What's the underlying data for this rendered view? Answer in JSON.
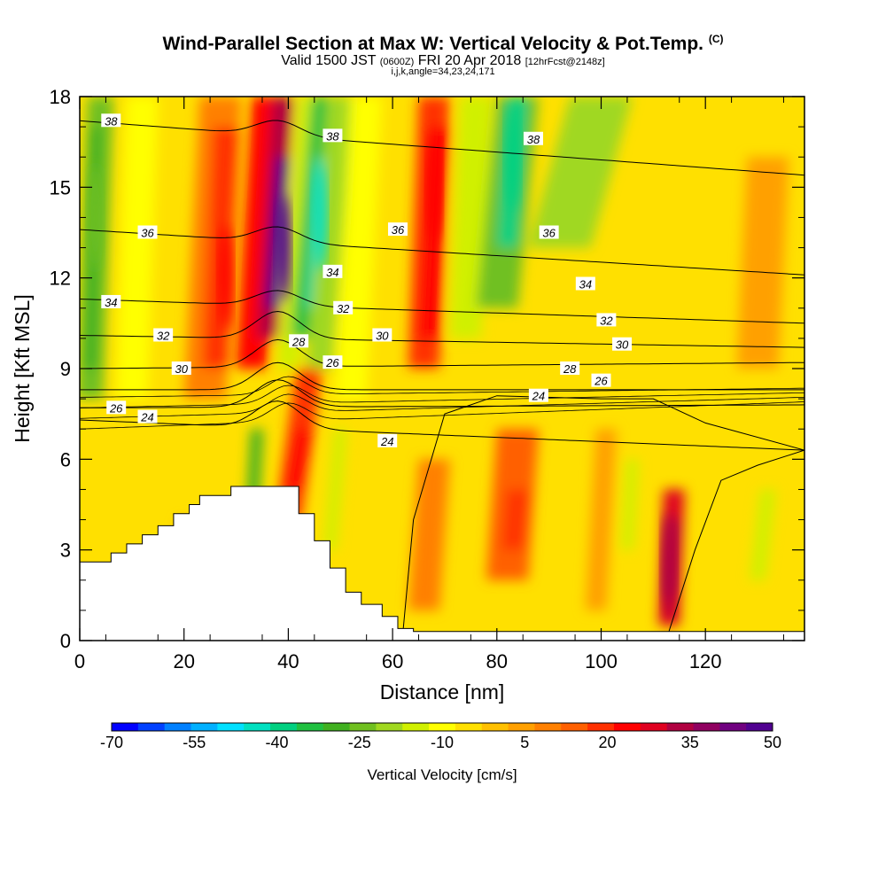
{
  "title": {
    "main": "Wind-Parallel Section at Max W: Vertical Velocity & Pot.Temp.",
    "main_mark": "(C)",
    "valid_prefix": "Valid 1500 JST",
    "valid_utc": "(0600Z)",
    "valid_date": "FRI 20 Apr 2018",
    "forecast": "[12hrFcst@2148z]",
    "indices": "i,j,k,angle=34,23,24,171"
  },
  "chart_data": {
    "type": "heatmap",
    "xlabel": "Distance [nm]",
    "ylabel": "Height [Kft MSL]",
    "xlim": [
      0,
      139
    ],
    "ylim": [
      0,
      18
    ],
    "x_ticks": [
      0,
      20,
      40,
      60,
      80,
      100,
      120
    ],
    "y_ticks": [
      0,
      3,
      6,
      9,
      12,
      15,
      18
    ],
    "colorbar": {
      "title": "Vertical Velocity [cm/s]",
      "levels": [
        -70,
        -65,
        -60,
        -55,
        -50,
        -45,
        -40,
        -35,
        -30,
        -25,
        -20,
        -15,
        -10,
        -5,
        0,
        5,
        10,
        15,
        20,
        25,
        30,
        35,
        40,
        45,
        50
      ],
      "tick_labels": [
        "-70",
        "-55",
        "-40",
        "-25",
        "-10",
        "5",
        "20",
        "35",
        "50"
      ],
      "tick_values": [
        -70,
        -55,
        -40,
        -25,
        -10,
        5,
        20,
        35,
        50
      ],
      "colors": [
        "#0000ff",
        "#0040ff",
        "#0080ff",
        "#00b0ff",
        "#00e0ff",
        "#00e0c0",
        "#00d080",
        "#20c040",
        "#40b020",
        "#70c020",
        "#a0d820",
        "#d0f000",
        "#ffff00",
        "#ffe000",
        "#ffc000",
        "#ffa000",
        "#ff8000",
        "#ff6000",
        "#ff3000",
        "#ff0000",
        "#e00020",
        "#b00040",
        "#900060",
        "#700080",
        "#500090"
      ]
    },
    "velocity_cores": [
      {
        "x": 39,
        "y": 13,
        "w_cms": 50
      },
      {
        "x": 28,
        "y": 12,
        "w_cms": 25
      },
      {
        "x": 46,
        "y": 14,
        "w_cms": -45
      },
      {
        "x": 83,
        "y": 16,
        "w_cms": -40
      },
      {
        "x": 68,
        "y": 15,
        "w_cms": 25
      },
      {
        "x": 113,
        "y": 2.5,
        "w_cms": 35
      },
      {
        "x": 3,
        "y": 14,
        "w_cms": -25
      }
    ],
    "terrain_profile": {
      "x": [
        0,
        3,
        6,
        9,
        12,
        15,
        18,
        21,
        23,
        26,
        29,
        32,
        35,
        38,
        39,
        42,
        45,
        48,
        51,
        54,
        58,
        61,
        64,
        139
      ],
      "y": [
        2.6,
        2.6,
        2.9,
        3.2,
        3.5,
        3.8,
        4.2,
        4.5,
        4.8,
        4.8,
        5.1,
        5.1,
        5.1,
        5.1,
        5.1,
        4.2,
        3.3,
        2.4,
        1.6,
        1.2,
        0.8,
        0.4,
        0.3,
        0.3
      ]
    },
    "theta_contours": [
      {
        "label": "38",
        "y_left": 17.2,
        "y_right": 15.4
      },
      {
        "label": "36",
        "y_left": 13.6,
        "y_right": 12.1
      },
      {
        "label": "34",
        "y_left": 11.3,
        "y_right": 10.5
      },
      {
        "label": "32",
        "y_left": 10.1,
        "y_right": 9.7
      },
      {
        "label": "30",
        "y_left": 9.0,
        "y_right": 9.2
      },
      {
        "label": "28",
        "y_left": 8.3,
        "y_right": 8.3
      },
      {
        "label": "26",
        "y_left": 7.7,
        "y_right": 7.8
      },
      {
        "label": "24",
        "y_left": 7.3,
        "y_right": 6.3
      }
    ],
    "contour_labels": [
      {
        "text": "38",
        "x": 6,
        "y": 17.2
      },
      {
        "text": "38",
        "x": 48.5,
        "y": 16.7
      },
      {
        "text": "38",
        "x": 87,
        "y": 16.6
      },
      {
        "text": "36",
        "x": 13,
        "y": 13.5
      },
      {
        "text": "36",
        "x": 61,
        "y": 13.6
      },
      {
        "text": "36",
        "x": 90,
        "y": 13.5
      },
      {
        "text": "34",
        "x": 6,
        "y": 11.2
      },
      {
        "text": "34",
        "x": 48.5,
        "y": 12.2
      },
      {
        "text": "34",
        "x": 97,
        "y": 11.8
      },
      {
        "text": "32",
        "x": 16,
        "y": 10.1
      },
      {
        "text": "32",
        "x": 50.5,
        "y": 11.0
      },
      {
        "text": "32",
        "x": 101,
        "y": 10.6
      },
      {
        "text": "30",
        "x": 19.5,
        "y": 9.0
      },
      {
        "text": "30",
        "x": 58,
        "y": 10.1
      },
      {
        "text": "30",
        "x": 104,
        "y": 9.8
      },
      {
        "text": "28",
        "x": 42,
        "y": 9.9
      },
      {
        "text": "28",
        "x": 94,
        "y": 9.0
      },
      {
        "text": "26",
        "x": 7,
        "y": 7.7
      },
      {
        "text": "26",
        "x": 48.5,
        "y": 9.2
      },
      {
        "text": "26",
        "x": 100,
        "y": 8.6
      },
      {
        "text": "24",
        "x": 13,
        "y": 7.4
      },
      {
        "text": "24",
        "x": 59,
        "y": 6.6
      },
      {
        "text": "24",
        "x": 88,
        "y": 8.1
      }
    ]
  }
}
